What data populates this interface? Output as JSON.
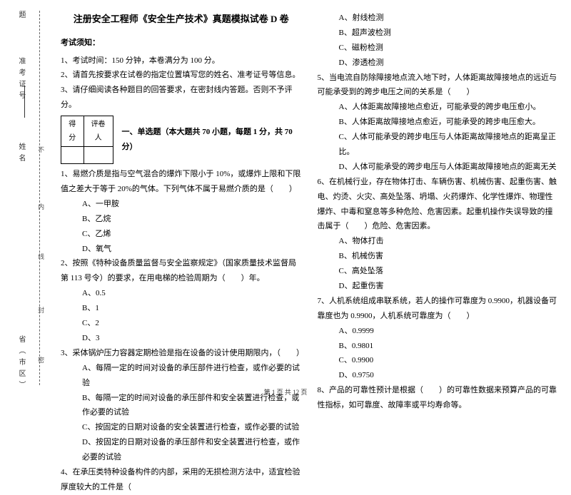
{
  "margin": {
    "l1": "题",
    "l2": "准考证号",
    "l3": "姓名",
    "l5": "省（市区）",
    "s1": "不",
    "s2": "内",
    "s3": "线",
    "s4": "封",
    "s5": "密"
  },
  "title": "注册安全工程师《安全生产技术》真题模拟试卷 D 卷",
  "notice_head": "考试须知：",
  "notice": {
    "n1": "1、考试时间：150 分钟，本卷满分为 100 分。",
    "n2": "2、请首先按要求在试卷的指定位置填写您的姓名、准考证号等信息。",
    "n3": "3、请仔细阅读各种题目的回答要求，在密封线内答题。否则不予评分。"
  },
  "score": {
    "c1": "得分",
    "c2": "评卷人"
  },
  "section1": "一、单选题（本大题共 70 小题，每题 1 分，共 70 分）",
  "q1": "1、易燃介质是指与空气混合的爆炸下限小于 10%，或爆炸上限和下限值之差大于等于 20%的气体。下列气体不属于易燃介质的是（　　）",
  "q1a": "A、一甲胺",
  "q1b": "B、乙烷",
  "q1c": "C、乙烯",
  "q1d": "D、氧气",
  "q2": "2、按照《特种设备质量监督与安全监察规定》（国家质量技术监督局第 113 号令）的要求，在用电梯的检验周期为（　　）年。",
  "q2a": "A、0.5",
  "q2b": "B、1",
  "q2c": "C、2",
  "q2d": "D、3",
  "q3": "3、采体锅炉压力容器定期检验是指在设备的设计使用期限内，（　　）",
  "q3a": "A、每隔一定的时间对设备的承压部件进行检查，或作必要的试验",
  "q3b": "B、每隔一定的时间对设备的承压部件和安全装置进行检查，或作必要的试验",
  "q3c": "C、按固定的日期对设备的安全装置进行检查，或作必要的试验",
  "q3d": "D、按固定的日期对设备的承压部件和安全装置进行检查，或作必要的试验",
  "q4": "4、在承压类特种设备构件的内部，采用的无损检测方法中，适宜检验厚度较大的工件是（",
  "r_a": "A、射线检测",
  "r_b": "B、超声波检测",
  "r_c": "C、磁粉检测",
  "r_d": "D、渗透检测",
  "q5": "5、当电流自防除障接地点流入地下时，人体距离故障接地点的远近与可能承受到的跨步电压之间的关系是（　　）",
  "q5a": "A、人体距离故障接地点愈近，可能承受的跨步电压愈小。",
  "q5b": "B、人体距离故障接地点愈近，可能承受的跨步电压愈大。",
  "q5c": "C、人体可能承受的跨步电压与人体距离故障接地点的距离呈正比。",
  "q5d": "D、人体可能承受的跨步电压与人体距离故障接地点的距离无关",
  "q6": "6、在机械行业，存在物体打击、车辆伤害、机械伤害、起重伤害、触电、灼烫、火灾、高处坠落、坍塌、火药爆炸、化学性爆炸、物理性爆炸、中毒和窒息等多种危险、危害因素。起重机操作失误导致的撞击属于（　　）危险、危害因素。",
  "q6a": "A、物体打击",
  "q6b": "B、机械伤害",
  "q6c": "C、高处坠落",
  "q6d": "D、起重伤害",
  "q7": "7、人机系统组成串联系统，若人的操作可靠度为 0.9900，机器设备可靠度也为 0.9900，人机系统可靠度为（　　）",
  "q7a": "A、0.9999",
  "q7b": "B、0.9801",
  "q7c": "C、0.9900",
  "q7d": "D、0.9750",
  "q8": "8、产品的可靠性预计是根据（　　）的可靠性数据来预算产品的可靠性指标，如可靠度、故障率或平均寿命等。",
  "footer": "第 1 页 共 12 页"
}
